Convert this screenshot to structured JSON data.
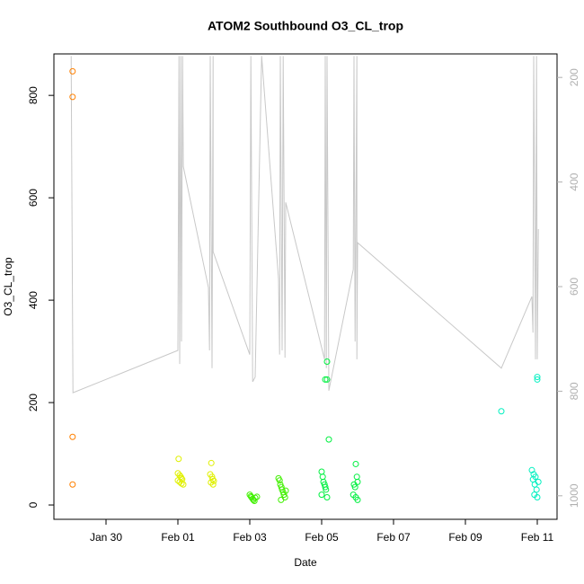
{
  "chart_data": {
    "type": "scatter",
    "title": "ATOM2 Southbound O3_CL_trop",
    "x_label": "Date",
    "y_label": "O3_CL_trop",
    "xlim": [
      28.55,
      42.55
    ],
    "ylim": [
      -28,
      881
    ],
    "y2lim": [
      1045,
      155
    ],
    "xticks": [
      {
        "value": 30,
        "label": "Jan 30"
      },
      {
        "value": 32,
        "label": "Feb 01"
      },
      {
        "value": 34,
        "label": "Feb 03"
      },
      {
        "value": 36,
        "label": "Feb 05"
      },
      {
        "value": 38,
        "label": "Feb 07"
      },
      {
        "value": 40,
        "label": "Feb 09"
      },
      {
        "value": 42,
        "label": "Feb 11"
      }
    ],
    "yticks": [
      0,
      200,
      400,
      600,
      800
    ],
    "y2ticks": [
      200,
      400,
      600,
      800,
      1000
    ],
    "grid": false,
    "series": [
      {
        "color": "#ff8000",
        "x": [
          29.07,
          29.07,
          29.07,
          29.07
        ],
        "values": [
          847,
          797,
          133,
          40
        ]
      },
      {
        "color": "#e0f000",
        "x": [
          32.0,
          32.02,
          32.05,
          32.08,
          32.1,
          32.12,
          32.0,
          32.05,
          32.1,
          32.15,
          32.9,
          32.93,
          32.95,
          32.97,
          33.0,
          32.92,
          32.98
        ],
        "values": [
          62,
          90,
          58,
          55,
          52,
          50,
          48,
          45,
          42,
          40,
          60,
          82,
          55,
          50,
          47,
          44,
          40
        ]
      },
      {
        "color": "#40f000",
        "x": [
          34.0,
          34.03,
          34.05,
          34.08,
          34.1,
          34.13,
          34.15,
          34.2,
          34.8,
          34.83,
          34.85,
          34.88,
          34.9,
          34.93,
          34.95,
          34.98,
          35.0,
          34.87
        ],
        "values": [
          20,
          17,
          15,
          12,
          10,
          8,
          14,
          16,
          52,
          48,
          40,
          35,
          30,
          25,
          20,
          15,
          28,
          10
        ]
      },
      {
        "color": "#00f040",
        "x": [
          36.15,
          36.1,
          36.15,
          36.2,
          36.0,
          36.03,
          36.05,
          36.08,
          36.1,
          36.12,
          36.0,
          36.15,
          36.95,
          36.98,
          37.0,
          36.9,
          36.93,
          36.88,
          36.95,
          37.0
        ],
        "values": [
          280,
          245,
          245,
          128,
          65,
          55,
          45,
          40,
          35,
          30,
          20,
          15,
          80,
          55,
          45,
          40,
          35,
          20,
          15,
          10
        ]
      },
      {
        "color": "#00f0c0",
        "x": [
          41.0,
          42.0,
          42.0,
          41.85,
          41.9,
          41.95,
          41.88,
          42.03,
          41.93,
          41.98,
          41.92,
          42.0
        ],
        "values": [
          183,
          250,
          245,
          68,
          60,
          55,
          50,
          45,
          40,
          30,
          20,
          15
        ]
      }
    ],
    "lines": [
      {
        "color": "#c8c8c8",
        "axis": "y2",
        "x": [
          29.03,
          29.08,
          32.0,
          32.03,
          32.05,
          32.08,
          32.1,
          32.13,
          32.15,
          32.85,
          32.88,
          32.9,
          32.95,
          32.98,
          32.98,
          34.0,
          34.03,
          34.08,
          34.15,
          34.33,
          34.8,
          34.83,
          34.85,
          34.9,
          34.93,
          34.98,
          35.0,
          36.08,
          36.1,
          36.13,
          36.15,
          36.2,
          36.88,
          36.9,
          36.93,
          36.98,
          36.98,
          37.0,
          41.0,
          41.85,
          41.88,
          41.9,
          41.95,
          41.98,
          42.0,
          42.03
        ],
        "values": [
          159,
          803,
          722,
          159,
          748,
          159,
          705,
          159,
          370,
          602,
          722,
          159,
          756,
          159,
          533,
          730,
          159,
          782,
          773,
          159,
          585,
          730,
          159,
          722,
          159,
          736,
          439,
          739,
          159,
          756,
          159,
          799,
          567,
          159,
          705,
          159,
          739,
          516,
          756,
          619,
          688,
          159,
          739,
          159,
          739,
          490
        ]
      }
    ]
  }
}
